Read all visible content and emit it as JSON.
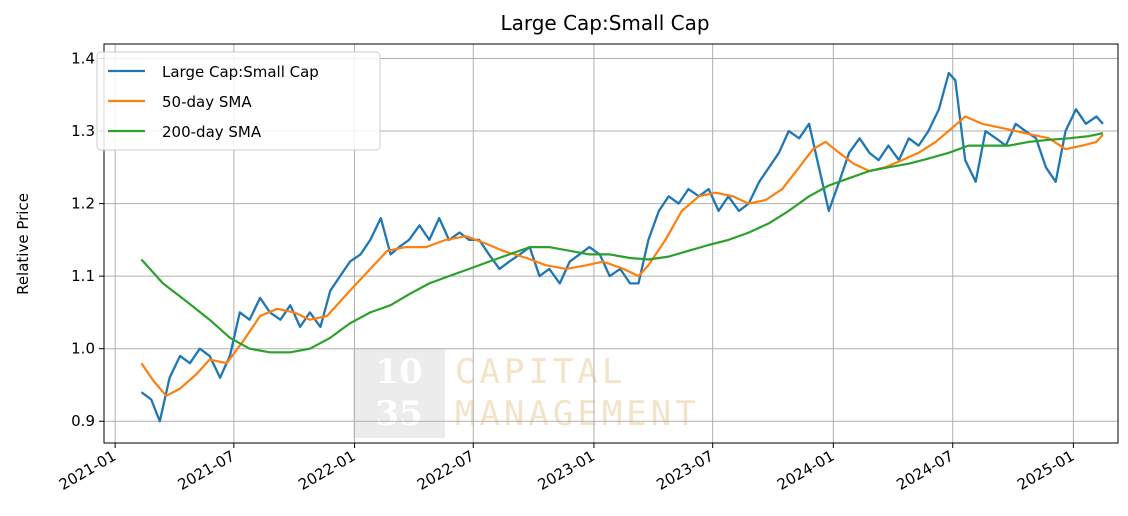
{
  "chart_data": {
    "type": "line",
    "title": "Large Cap:Small Cap",
    "xlabel": "",
    "ylabel": "Relative Price",
    "x_range": [
      "2020-12-15",
      "2025-03-10"
    ],
    "ylim": [
      0.87,
      1.42
    ],
    "grid": true,
    "legend_position": "top-left",
    "x_ticks": [
      "2021-01",
      "2021-07",
      "2022-01",
      "2022-07",
      "2023-01",
      "2023-07",
      "2024-01",
      "2024-07",
      "2025-01"
    ],
    "y_ticks": [
      0.9,
      1.0,
      1.1,
      1.2,
      1.3,
      1.4
    ],
    "y_tick_labels": [
      "0.9",
      "1.0",
      "1.1",
      "1.2",
      "1.3",
      "1.4"
    ],
    "series": [
      {
        "name": "Large Cap:Small Cap",
        "color": "#1f77b4",
        "points": [
          [
            "2021-02-10",
            0.94
          ],
          [
            "2021-02-25",
            0.93
          ],
          [
            "2021-03-10",
            0.9
          ],
          [
            "2021-03-25",
            0.96
          ],
          [
            "2021-04-10",
            0.99
          ],
          [
            "2021-04-25",
            0.98
          ],
          [
            "2021-05-10",
            1.0
          ],
          [
            "2021-05-25",
            0.99
          ],
          [
            "2021-06-10",
            0.96
          ],
          [
            "2021-06-25",
            0.99
          ],
          [
            "2021-07-10",
            1.05
          ],
          [
            "2021-07-25",
            1.04
          ],
          [
            "2021-08-10",
            1.07
          ],
          [
            "2021-08-25",
            1.05
          ],
          [
            "2021-09-10",
            1.04
          ],
          [
            "2021-09-25",
            1.06
          ],
          [
            "2021-10-10",
            1.03
          ],
          [
            "2021-10-25",
            1.05
          ],
          [
            "2021-11-10",
            1.03
          ],
          [
            "2021-11-25",
            1.08
          ],
          [
            "2021-12-10",
            1.1
          ],
          [
            "2021-12-25",
            1.12
          ],
          [
            "2022-01-10",
            1.13
          ],
          [
            "2022-01-25",
            1.15
          ],
          [
            "2022-02-10",
            1.18
          ],
          [
            "2022-02-25",
            1.13
          ],
          [
            "2022-03-10",
            1.14
          ],
          [
            "2022-03-25",
            1.15
          ],
          [
            "2022-04-10",
            1.17
          ],
          [
            "2022-04-25",
            1.15
          ],
          [
            "2022-05-10",
            1.18
          ],
          [
            "2022-05-25",
            1.15
          ],
          [
            "2022-06-10",
            1.16
          ],
          [
            "2022-06-25",
            1.15
          ],
          [
            "2022-07-10",
            1.15
          ],
          [
            "2022-07-25",
            1.13
          ],
          [
            "2022-08-10",
            1.11
          ],
          [
            "2022-08-25",
            1.12
          ],
          [
            "2022-09-10",
            1.13
          ],
          [
            "2022-09-25",
            1.14
          ],
          [
            "2022-10-10",
            1.1
          ],
          [
            "2022-10-25",
            1.11
          ],
          [
            "2022-11-10",
            1.09
          ],
          [
            "2022-11-25",
            1.12
          ],
          [
            "2022-12-10",
            1.13
          ],
          [
            "2022-12-25",
            1.14
          ],
          [
            "2023-01-10",
            1.13
          ],
          [
            "2023-01-25",
            1.1
          ],
          [
            "2023-02-10",
            1.11
          ],
          [
            "2023-02-25",
            1.09
          ],
          [
            "2023-03-10",
            1.09
          ],
          [
            "2023-03-25",
            1.15
          ],
          [
            "2023-04-10",
            1.19
          ],
          [
            "2023-04-25",
            1.21
          ],
          [
            "2023-05-10",
            1.2
          ],
          [
            "2023-05-25",
            1.22
          ],
          [
            "2023-06-10",
            1.21
          ],
          [
            "2023-06-25",
            1.22
          ],
          [
            "2023-07-10",
            1.19
          ],
          [
            "2023-07-25",
            1.21
          ],
          [
            "2023-08-10",
            1.19
          ],
          [
            "2023-08-25",
            1.2
          ],
          [
            "2023-09-10",
            1.23
          ],
          [
            "2023-09-25",
            1.25
          ],
          [
            "2023-10-10",
            1.27
          ],
          [
            "2023-10-25",
            1.3
          ],
          [
            "2023-11-10",
            1.29
          ],
          [
            "2023-11-25",
            1.31
          ],
          [
            "2023-12-10",
            1.25
          ],
          [
            "2023-12-25",
            1.19
          ],
          [
            "2024-01-10",
            1.23
          ],
          [
            "2024-01-25",
            1.27
          ],
          [
            "2024-02-10",
            1.29
          ],
          [
            "2024-02-25",
            1.27
          ],
          [
            "2024-03-10",
            1.26
          ],
          [
            "2024-03-25",
            1.28
          ],
          [
            "2024-04-10",
            1.26
          ],
          [
            "2024-04-25",
            1.29
          ],
          [
            "2024-05-10",
            1.28
          ],
          [
            "2024-05-25",
            1.3
          ],
          [
            "2024-06-10",
            1.33
          ],
          [
            "2024-06-25",
            1.38
          ],
          [
            "2024-07-05",
            1.37
          ],
          [
            "2024-07-20",
            1.26
          ],
          [
            "2024-08-05",
            1.23
          ],
          [
            "2024-08-20",
            1.3
          ],
          [
            "2024-09-05",
            1.29
          ],
          [
            "2024-09-20",
            1.28
          ],
          [
            "2024-10-05",
            1.31
          ],
          [
            "2024-10-20",
            1.3
          ],
          [
            "2024-11-05",
            1.29
          ],
          [
            "2024-11-20",
            1.25
          ],
          [
            "2024-12-05",
            1.23
          ],
          [
            "2024-12-20",
            1.3
          ],
          [
            "2025-01-05",
            1.33
          ],
          [
            "2025-01-20",
            1.31
          ],
          [
            "2025-02-05",
            1.32
          ],
          [
            "2025-02-15",
            1.31
          ]
        ]
      },
      {
        "name": "50-day SMA",
        "color": "#ff7f0e",
        "points": [
          [
            "2021-02-10",
            0.98
          ],
          [
            "2021-03-01",
            0.955
          ],
          [
            "2021-03-20",
            0.935
          ],
          [
            "2021-04-10",
            0.945
          ],
          [
            "2021-05-05",
            0.965
          ],
          [
            "2021-05-25",
            0.985
          ],
          [
            "2021-06-20",
            0.98
          ],
          [
            "2021-07-15",
            1.01
          ],
          [
            "2021-08-10",
            1.045
          ],
          [
            "2021-09-05",
            1.055
          ],
          [
            "2021-10-01",
            1.05
          ],
          [
            "2021-10-25",
            1.04
          ],
          [
            "2021-11-20",
            1.045
          ],
          [
            "2021-12-20",
            1.075
          ],
          [
            "2022-01-25",
            1.11
          ],
          [
            "2022-02-20",
            1.135
          ],
          [
            "2022-03-20",
            1.14
          ],
          [
            "2022-04-20",
            1.14
          ],
          [
            "2022-05-20",
            1.15
          ],
          [
            "2022-06-20",
            1.155
          ],
          [
            "2022-07-20",
            1.145
          ],
          [
            "2022-08-15",
            1.135
          ],
          [
            "2022-09-20",
            1.125
          ],
          [
            "2022-10-20",
            1.115
          ],
          [
            "2022-11-20",
            1.11
          ],
          [
            "2022-12-20",
            1.115
          ],
          [
            "2023-01-15",
            1.12
          ],
          [
            "2023-02-15",
            1.11
          ],
          [
            "2023-03-10",
            1.1
          ],
          [
            "2023-03-25",
            1.115
          ],
          [
            "2023-04-20",
            1.15
          ],
          [
            "2023-05-15",
            1.19
          ],
          [
            "2023-06-10",
            1.21
          ],
          [
            "2023-07-05",
            1.215
          ],
          [
            "2023-08-01",
            1.21
          ],
          [
            "2023-08-25",
            1.2
          ],
          [
            "2023-09-20",
            1.205
          ],
          [
            "2023-10-15",
            1.22
          ],
          [
            "2023-11-10",
            1.25
          ],
          [
            "2023-12-01",
            1.275
          ],
          [
            "2023-12-20",
            1.285
          ],
          [
            "2024-01-10",
            1.27
          ],
          [
            "2024-02-01",
            1.255
          ],
          [
            "2024-02-25",
            1.245
          ],
          [
            "2024-03-20",
            1.25
          ],
          [
            "2024-04-15",
            1.26
          ],
          [
            "2024-05-10",
            1.27
          ],
          [
            "2024-06-05",
            1.285
          ],
          [
            "2024-07-01",
            1.305
          ],
          [
            "2024-07-20",
            1.32
          ],
          [
            "2024-08-15",
            1.31
          ],
          [
            "2024-09-10",
            1.305
          ],
          [
            "2024-10-05",
            1.3
          ],
          [
            "2024-10-30",
            1.295
          ],
          [
            "2024-11-25",
            1.29
          ],
          [
            "2024-12-20",
            1.275
          ],
          [
            "2025-01-15",
            1.28
          ],
          [
            "2025-02-05",
            1.285
          ],
          [
            "2025-02-15",
            1.295
          ]
        ]
      },
      {
        "name": "200-day SMA",
        "color": "#2ca02c",
        "points": [
          [
            "2021-02-10",
            1.123
          ],
          [
            "2021-03-15",
            1.09
          ],
          [
            "2021-04-20",
            1.065
          ],
          [
            "2021-05-25",
            1.04
          ],
          [
            "2021-06-25",
            1.015
          ],
          [
            "2021-07-25",
            1.0
          ],
          [
            "2021-08-25",
            0.995
          ],
          [
            "2021-09-25",
            0.995
          ],
          [
            "2021-10-25",
            1.0
          ],
          [
            "2021-11-25",
            1.015
          ],
          [
            "2021-12-25",
            1.035
          ],
          [
            "2022-01-25",
            1.05
          ],
          [
            "2022-02-25",
            1.06
          ],
          [
            "2022-03-25",
            1.075
          ],
          [
            "2022-04-25",
            1.09
          ],
          [
            "2022-05-25",
            1.1
          ],
          [
            "2022-06-25",
            1.11
          ],
          [
            "2022-07-25",
            1.12
          ],
          [
            "2022-08-25",
            1.13
          ],
          [
            "2022-09-25",
            1.14
          ],
          [
            "2022-10-25",
            1.14
          ],
          [
            "2022-11-25",
            1.135
          ],
          [
            "2022-12-25",
            1.13
          ],
          [
            "2023-01-25",
            1.13
          ],
          [
            "2023-02-25",
            1.125
          ],
          [
            "2023-03-25",
            1.123
          ],
          [
            "2023-04-25",
            1.127
          ],
          [
            "2023-05-25",
            1.135
          ],
          [
            "2023-06-25",
            1.143
          ],
          [
            "2023-07-25",
            1.15
          ],
          [
            "2023-08-25",
            1.16
          ],
          [
            "2023-09-25",
            1.173
          ],
          [
            "2023-10-25",
            1.19
          ],
          [
            "2023-11-25",
            1.21
          ],
          [
            "2023-12-25",
            1.225
          ],
          [
            "2024-01-25",
            1.235
          ],
          [
            "2024-02-25",
            1.245
          ],
          [
            "2024-03-25",
            1.25
          ],
          [
            "2024-04-25",
            1.255
          ],
          [
            "2024-05-25",
            1.262
          ],
          [
            "2024-06-25",
            1.27
          ],
          [
            "2024-07-25",
            1.28
          ],
          [
            "2024-08-25",
            1.28
          ],
          [
            "2024-09-25",
            1.28
          ],
          [
            "2024-10-25",
            1.285
          ],
          [
            "2024-11-25",
            1.288
          ],
          [
            "2024-12-25",
            1.29
          ],
          [
            "2025-01-25",
            1.293
          ],
          [
            "2025-02-15",
            1.297
          ]
        ]
      }
    ]
  },
  "watermark": {
    "number_top": "10",
    "number_bottom": "35",
    "line1": "CAPITAL",
    "line2": "MANAGEMENT"
  }
}
